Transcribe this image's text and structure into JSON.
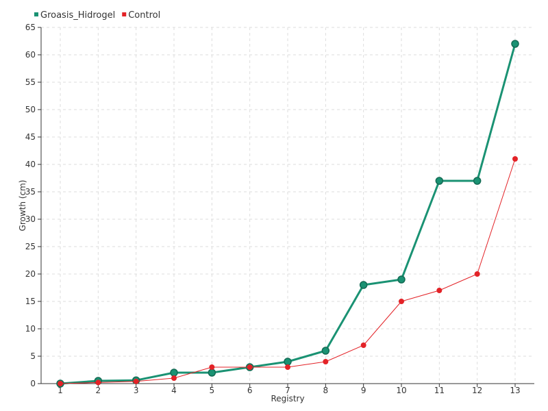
{
  "chart_data": {
    "type": "line",
    "xlabel": "Registry",
    "ylabel": "Growth (cm)",
    "ylim": [
      0,
      65
    ],
    "y_ticks": [
      0,
      5,
      10,
      15,
      20,
      25,
      30,
      35,
      40,
      45,
      50,
      55,
      60,
      65
    ],
    "categories": [
      "1",
      "2",
      "3",
      "4",
      "5",
      "6",
      "7",
      "8",
      "9",
      "10",
      "11",
      "12",
      "13"
    ],
    "grid": true,
    "legend_position": "top-left",
    "series": [
      {
        "name": "Groasis_Hidrogel",
        "color": "#1a9273",
        "values": [
          0,
          0.5,
          0.6,
          2,
          2,
          3,
          4,
          6,
          18,
          19,
          37,
          37,
          62
        ]
      },
      {
        "name": "Control",
        "color": "#e32227",
        "values": [
          0,
          0.2,
          0.4,
          1,
          3,
          3,
          3,
          4,
          7,
          15,
          17,
          20,
          41
        ]
      }
    ]
  }
}
